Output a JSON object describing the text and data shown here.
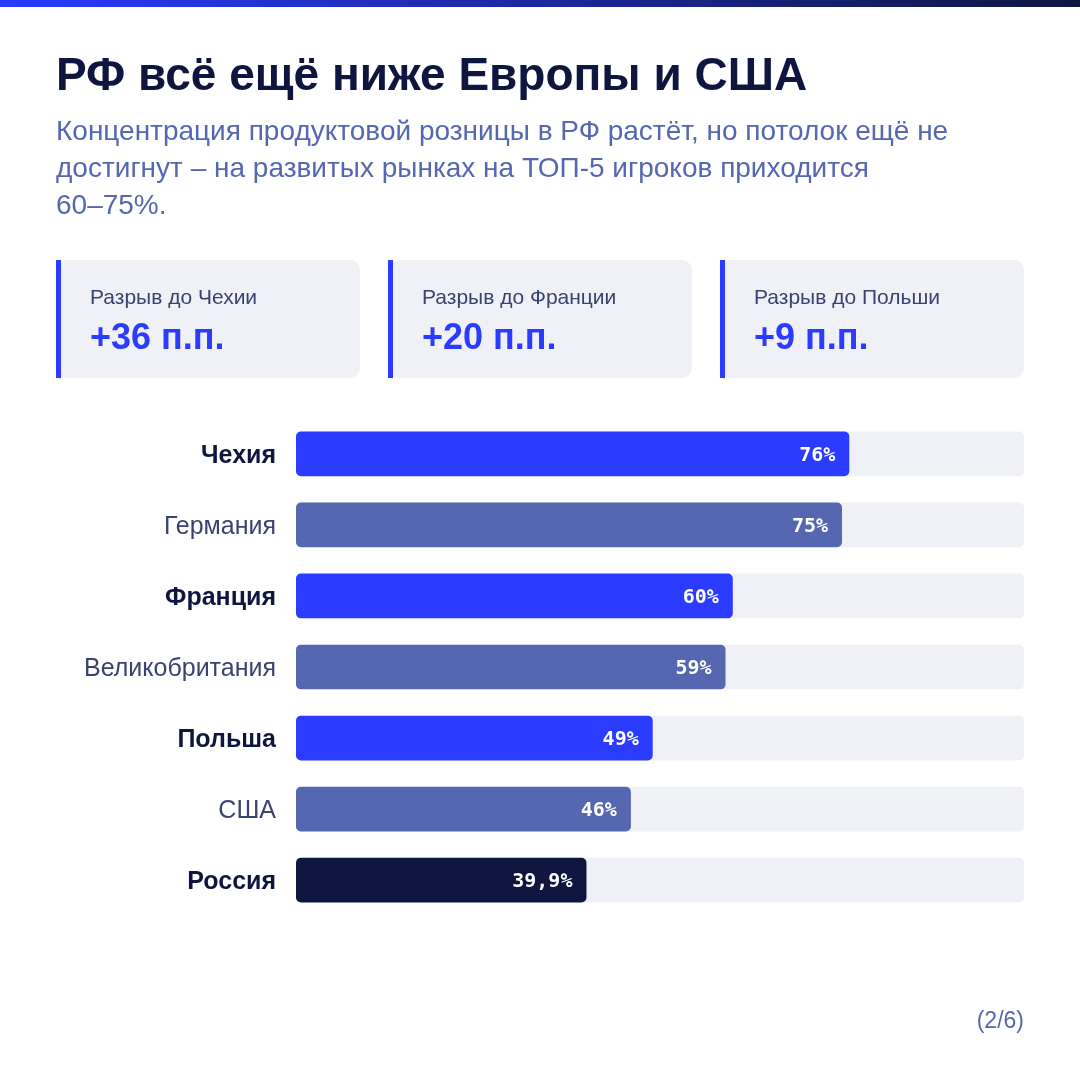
{
  "chart_data": {
    "type": "bar",
    "orientation": "horizontal",
    "title": "РФ всё ещё ниже Европы и США",
    "subtitle": "Концентрация продуктовой розницы в РФ растёт, но потолок ещё не достигнут – на развитых рынках на ТОП-5 игроков приходится 60–75%.",
    "categories": [
      "Чехия",
      "Германия",
      "Франция",
      "Великобритания",
      "Польша",
      "США",
      "Россия"
    ],
    "values": [
      76,
      75,
      60,
      59,
      49,
      46,
      39.9
    ],
    "value_labels": [
      "76%",
      "75%",
      "60%",
      "59%",
      "49%",
      "46%",
      "39,9%"
    ],
    "colors": [
      "#2b3bff",
      "#5567b0",
      "#2b3bff",
      "#5567b0",
      "#2b3bff",
      "#5567b0",
      "#0e1640"
    ],
    "xlim": [
      0,
      100
    ],
    "annotations": [
      "Разрыв до Чехии",
      "+36 п.п.",
      "Разрыв до Франции",
      "+20 п.п.",
      "Разрыв до Польши",
      "+9 п.п.",
      "(2/6)"
    ]
  }
}
